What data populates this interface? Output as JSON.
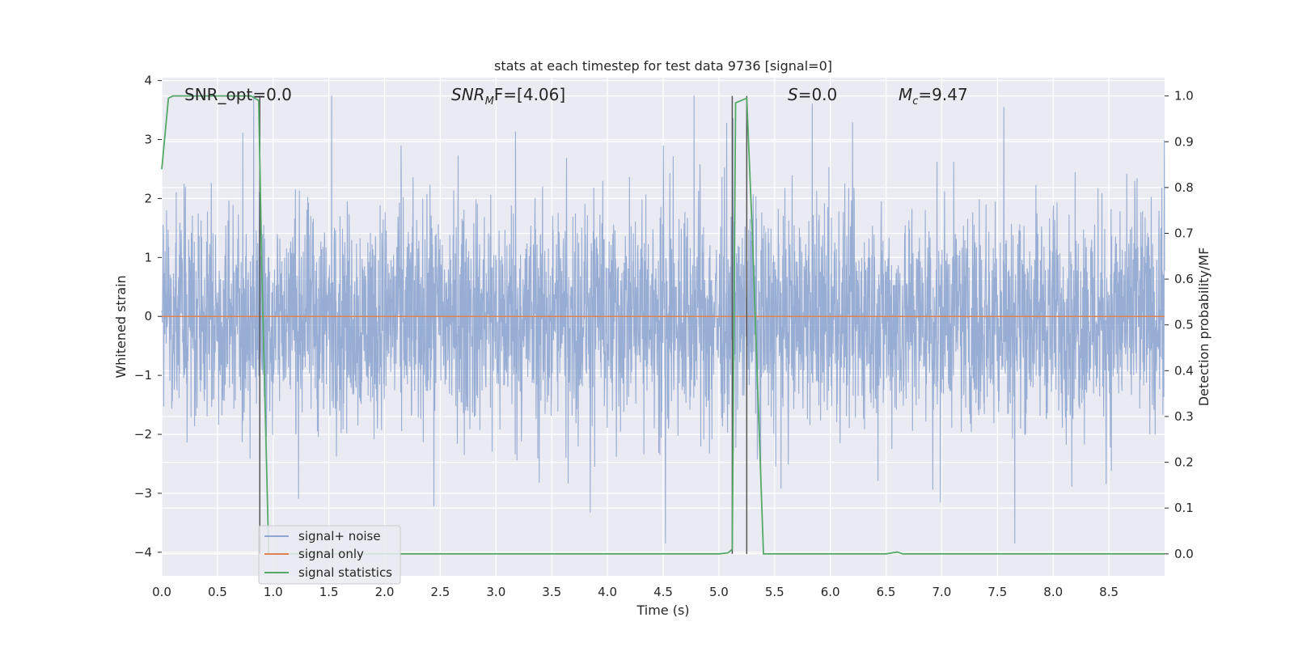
{
  "chart_data": {
    "type": "line",
    "title": "stats at each timestep for test data 9736 [signal=0]",
    "xlabel": "Time (s)",
    "ylabel": "Whitened strain",
    "y2label": "Detection probability/MF",
    "xlim": [
      0.0,
      9.0
    ],
    "ylim": [
      -4.4,
      4.05
    ],
    "y2lim": [
      -0.048,
      1.04
    ],
    "grid": true,
    "legend_position": "lower-left",
    "x_ticks": [
      0.0,
      0.5,
      1.0,
      1.5,
      2.0,
      2.5,
      3.0,
      3.5,
      4.0,
      4.5,
      5.0,
      5.5,
      6.0,
      6.5,
      7.0,
      7.5,
      8.0,
      8.5
    ],
    "x_tick_labels": [
      "0.0",
      "0.5",
      "1.0",
      "1.5",
      "2.0",
      "2.5",
      "3.0",
      "3.5",
      "4.0",
      "4.5",
      "5.0",
      "5.5",
      "6.0",
      "6.5",
      "7.0",
      "7.5",
      "8.0",
      "8.5"
    ],
    "y_ticks": [
      4,
      3,
      2,
      1,
      0,
      -1,
      -2,
      -3,
      -4
    ],
    "y_tick_labels": [
      "4",
      "3",
      "2",
      "1",
      "0",
      "−1",
      "−2",
      "−3",
      "−4"
    ],
    "y2_ticks": [
      1.0,
      0.9,
      0.8,
      0.7,
      0.6,
      0.5,
      0.4,
      0.3,
      0.2,
      0.1,
      0.0
    ],
    "y2_tick_labels": [
      "1.0",
      "0.9",
      "0.8",
      "0.7",
      "0.6",
      "0.5",
      "0.4",
      "0.3",
      "0.2",
      "0.1",
      "0.0"
    ],
    "annotations": {
      "snr_opt": "SNR_opt=0.0",
      "snr_mf_main": "SNR",
      "snr_mf_sub": "M",
      "snr_mf_rest": "F=[4.06]",
      "s_main": "S",
      "s_rest": "=0.0",
      "mc_main": "M",
      "mc_sub": "c",
      "mc_rest": "=9.47"
    },
    "vertical_lines_x": [
      0.88,
      5.12,
      5.25
    ],
    "series": [
      {
        "name": "signal+ noise",
        "color": "#8fa6cf",
        "axis": "left",
        "approx_envelope": {
          "typical_abs": 1.6,
          "peak_max": 3.75,
          "peak_min": -3.85
        }
      },
      {
        "name": "signal only",
        "color": "#dd8452",
        "axis": "left",
        "x": [
          0.0,
          9.0
        ],
        "y": [
          0.0,
          0.0
        ]
      },
      {
        "name": "signal statistics",
        "color": "#55a868",
        "axis": "right",
        "x": [
          0.0,
          0.06,
          0.1,
          0.2,
          0.3,
          0.5,
          0.7,
          0.8,
          0.87,
          0.9,
          0.96,
          1.0,
          1.5,
          2.0,
          3.0,
          4.0,
          5.0,
          5.08,
          5.12,
          5.15,
          5.2,
          5.25,
          5.3,
          5.4,
          5.5,
          6.0,
          6.5,
          6.6,
          6.65,
          6.7,
          7.0,
          8.0,
          9.0
        ],
        "y": [
          0.84,
          0.995,
          1.0,
          1.0,
          1.0,
          1.0,
          1.0,
          1.0,
          0.99,
          0.6,
          0.0,
          0.0,
          0.0,
          0.0,
          0.0,
          0.0,
          0.0,
          0.002,
          0.01,
          0.985,
          0.99,
          0.995,
          0.7,
          0.0,
          0.0,
          0.0,
          0.0,
          0.004,
          0.0,
          0.0,
          0.0,
          0.0,
          0.0
        ]
      }
    ],
    "legend": [
      "signal+ noise",
      "signal only",
      "signal statistics"
    ]
  },
  "colors": {
    "plot_background": "#eaeaf2",
    "grid": "#ffffff",
    "vline": "#555555"
  }
}
